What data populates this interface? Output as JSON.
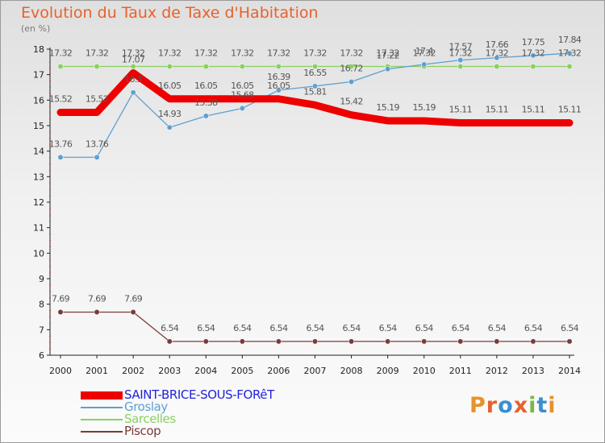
{
  "title": "Evolution du Taux de Taxe d'Habitation",
  "unit_label": "(en %)",
  "logo": {
    "text": "Proxiti",
    "letters": [
      "P",
      "r",
      "o",
      "x",
      "i",
      "t",
      "i"
    ],
    "colors": [
      "#e8912c",
      "#e8612c",
      "#3a8fd0",
      "#e8612c",
      "#7ab648",
      "#3a8fd0",
      "#e8912c"
    ]
  },
  "chart_data": {
    "type": "line",
    "title": "Evolution du Taux de Taxe d'Habitation",
    "ylabel": "(en %)",
    "xlabel": "",
    "ylim": [
      6,
      18
    ],
    "yticks": [
      6,
      7,
      8,
      9,
      10,
      11,
      12,
      13,
      14,
      15,
      16,
      17,
      18
    ],
    "x": [
      "2000",
      "2001",
      "2002",
      "2003",
      "2004",
      "2005",
      "2006",
      "2007",
      "2008",
      "2009",
      "2010",
      "2011",
      "2012",
      "2013",
      "2014"
    ],
    "series": [
      {
        "name": "SAINT-BRICE-SOUS-FORêT",
        "color": "#ee0000",
        "legend_color": "#2222dd",
        "values": [
          15.52,
          15.52,
          17.07,
          16.05,
          16.05,
          16.05,
          16.05,
          15.81,
          15.42,
          15.19,
          15.19,
          15.11,
          15.11,
          15.11,
          15.11
        ],
        "labels": [
          "15.52",
          "15.52",
          "17.07",
          "16.05",
          "16.05",
          "16.05",
          "16.05",
          "15.81",
          "15.42",
          "15.19",
          "15.19",
          "15.11",
          "15.11",
          "15.11",
          "15.11"
        ]
      },
      {
        "name": "Groslay",
        "color": "#5f9fd0",
        "legend_color": "#5f9fd0",
        "values": [
          13.76,
          13.76,
          16.3,
          14.93,
          15.38,
          15.68,
          16.39,
          16.55,
          16.72,
          17.22,
          17.4,
          17.57,
          17.66,
          17.75,
          17.84
        ],
        "labels": [
          "13.76",
          "13.76",
          "16.3",
          "14.93",
          "15.38",
          "15.68",
          "16.39",
          "16.55",
          "16.72",
          "17.22",
          "17.4",
          "17.57",
          "17.66",
          "17.75",
          "17.84"
        ]
      },
      {
        "name": "Sarcelles",
        "color": "#88d060",
        "legend_color": "#88d060",
        "values": [
          17.32,
          17.32,
          17.32,
          17.32,
          17.32,
          17.32,
          17.32,
          17.32,
          17.32,
          17.32,
          17.32,
          17.32,
          17.32,
          17.32,
          17.32
        ],
        "labels": [
          "17.32",
          "17.32",
          "17.32",
          "17.32",
          "17.32",
          "17.32",
          "17.32",
          "17.32",
          "17.32",
          "17.32",
          "17.32",
          "17.32",
          "17.32",
          "17.32",
          "17.32"
        ]
      },
      {
        "name": "Piscop",
        "color": "#7a3b3b",
        "legend_color": "#7a3b3b",
        "values": [
          7.69,
          7.69,
          7.69,
          6.54,
          6.54,
          6.54,
          6.54,
          6.54,
          6.54,
          6.54,
          6.54,
          6.54,
          6.54,
          6.54,
          6.54
        ],
        "labels": [
          "7.69",
          "7.69",
          "7.69",
          "6.54",
          "6.54",
          "6.54",
          "6.54",
          "6.54",
          "6.54",
          "6.54",
          "6.54",
          "6.54",
          "6.54",
          "6.54",
          "6.54"
        ]
      }
    ]
  }
}
